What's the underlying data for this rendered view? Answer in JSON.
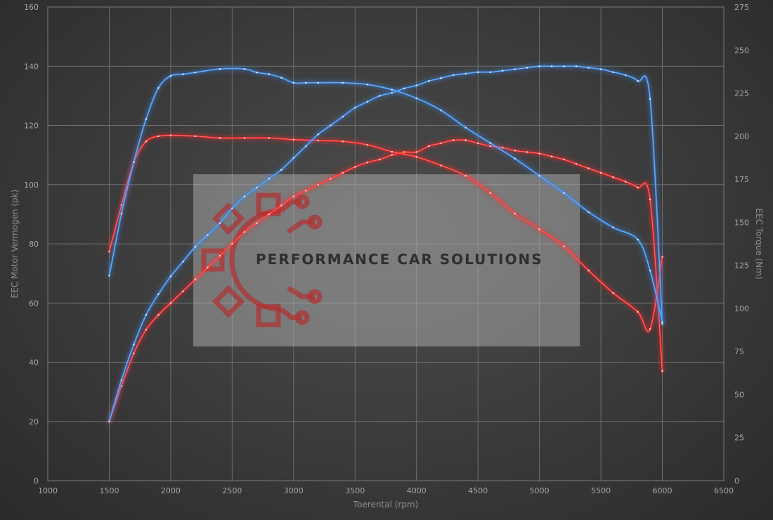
{
  "chart_data": {
    "type": "line",
    "title": "",
    "xlabel": "Toerental (rpm)",
    "ylabel": "EEC Motor Vermogen (pk)",
    "y2label": "EEC Torque (Nm)",
    "xlim": [
      1000,
      6500
    ],
    "ylim": [
      0,
      160
    ],
    "y2lim": [
      0,
      275
    ],
    "x_ticks": [
      1000,
      1500,
      2000,
      2500,
      3000,
      3500,
      4000,
      4500,
      5000,
      5500,
      6000,
      6500
    ],
    "y_ticks": [
      0,
      20,
      40,
      60,
      80,
      100,
      120,
      140,
      160
    ],
    "y2_ticks": [
      0,
      25,
      50,
      75,
      100,
      125,
      150,
      175,
      200,
      225,
      250,
      275
    ],
    "grid": true,
    "legend": "none",
    "watermark": "PERFORMANCE CAR SOLUTIONS",
    "series": [
      {
        "axis": "left",
        "color": "#ff2a2a",
        "x": [
          1500,
          1600,
          1700,
          1800,
          1900,
          2000,
          2100,
          2200,
          2300,
          2400,
          2500,
          2600,
          2700,
          2800,
          2900,
          3000,
          3100,
          3200,
          3300,
          3400,
          3500,
          3600,
          3700,
          3800,
          3900,
          4000,
          4100,
          4200,
          4300,
          4400,
          4500,
          4600,
          4700,
          4800,
          4900,
          5000,
          5100,
          5200,
          5300,
          5400,
          5500,
          5600,
          5700,
          5800,
          5900,
          6000
        ],
        "y": [
          20,
          32,
          43,
          51,
          56,
          60,
          64,
          68,
          72,
          76,
          80,
          84,
          87,
          90,
          93,
          96,
          98,
          100,
          102,
          104,
          106,
          107.5,
          108.5,
          110,
          111,
          111,
          113,
          114,
          115,
          115,
          114,
          113,
          112.5,
          111.5,
          111,
          110.5,
          109.5,
          108.5,
          107,
          105.5,
          104,
          102.5,
          101,
          99,
          95,
          37
        ]
      },
      {
        "axis": "right",
        "color": "#ff2a2a",
        "x": [
          1500,
          1600,
          1700,
          1800,
          1900,
          2000,
          2200,
          2400,
          2600,
          2800,
          3000,
          3200,
          3400,
          3600,
          3800,
          4000,
          4200,
          4400,
          4600,
          4800,
          5000,
          5200,
          5400,
          5600,
          5800,
          5900,
          6000
        ],
        "y": [
          133,
          160,
          185,
          197,
          200,
          200.5,
          200,
          199,
          199,
          199,
          198,
          197.5,
          197,
          195,
          191,
          188,
          183,
          177,
          167,
          155,
          146,
          136,
          122,
          109,
          98,
          88,
          130
        ]
      },
      {
        "axis": "left",
        "color": "#3a8ae8",
        "x": [
          1500,
          1600,
          1700,
          1800,
          1900,
          2000,
          2100,
          2200,
          2300,
          2400,
          2500,
          2600,
          2700,
          2800,
          2900,
          3000,
          3100,
          3200,
          3300,
          3400,
          3500,
          3600,
          3700,
          3800,
          3900,
          4000,
          4100,
          4200,
          4300,
          4400,
          4500,
          4600,
          4700,
          4800,
          4900,
          5000,
          5100,
          5200,
          5300,
          5400,
          5500,
          5600,
          5700,
          5800,
          5900,
          6000
        ],
        "y": [
          20,
          34,
          46,
          56,
          63,
          69,
          74,
          79,
          83,
          87,
          92,
          96,
          99,
          102,
          105,
          109,
          113,
          117,
          120,
          123,
          126,
          128,
          130,
          131,
          132.5,
          133.5,
          135,
          136,
          137,
          137.5,
          138,
          138,
          138.5,
          139,
          139.5,
          140,
          140,
          140,
          140,
          139.5,
          139,
          138,
          137,
          135,
          129,
          53
        ]
      },
      {
        "axis": "right",
        "color": "#3a8ae8",
        "x": [
          1500,
          1600,
          1700,
          1800,
          1900,
          2000,
          2100,
          2200,
          2400,
          2600,
          2700,
          2800,
          2900,
          3000,
          3100,
          3200,
          3400,
          3600,
          3800,
          4000,
          4200,
          4400,
          4600,
          4800,
          5000,
          5200,
          5400,
          5600,
          5800,
          5900,
          6000
        ],
        "y": [
          119,
          155,
          185,
          210,
          228,
          235,
          236,
          237,
          239,
          239,
          237,
          236,
          234,
          231,
          231,
          231,
          231,
          230,
          227,
          222,
          215,
          205,
          196,
          187,
          177,
          167,
          156,
          147,
          140,
          122,
          92
        ]
      }
    ]
  }
}
